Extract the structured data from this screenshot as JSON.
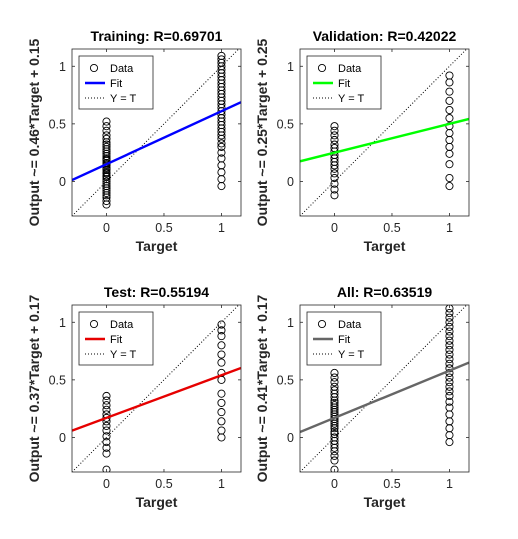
{
  "chart_data": [
    {
      "type": "scatter",
      "title": "Training: R=0.69701",
      "xlabel": "Target",
      "ylabel": "Output ~= 0.46*Target + 0.15",
      "xlim": [
        -0.3,
        1.17
      ],
      "ylim": [
        -0.3,
        1.15
      ],
      "xticks": [
        {
          "v": 0,
          "label": "0"
        },
        {
          "v": 0.5,
          "label": "0.5"
        },
        {
          "v": 1,
          "label": "1"
        }
      ],
      "yticks": [
        {
          "v": 0,
          "label": "0"
        },
        {
          "v": 0.5,
          "label": "0.5"
        },
        {
          "v": 1,
          "label": "1"
        }
      ],
      "legend": {
        "placement": "top-left",
        "entries": [
          "Data",
          "Fit",
          "Y = T"
        ]
      },
      "fit": {
        "slope": 0.46,
        "intercept": 0.15,
        "color": "#0000ff"
      },
      "data": [
        {
          "x": 0,
          "y": [
            -0.2,
            -0.17,
            -0.14,
            -0.12,
            -0.1,
            -0.08,
            -0.06,
            -0.04,
            -0.02,
            0,
            0.02,
            0.04,
            0.05,
            0.07,
            0.08,
            0.1,
            0.11,
            0.12,
            0.14,
            0.15,
            0.16,
            0.18,
            0.19,
            0.2,
            0.22,
            0.24,
            0.26,
            0.28,
            0.3,
            0.32,
            0.34,
            0.37,
            0.4,
            0.44,
            0.48,
            0.52
          ]
        },
        {
          "x": 1,
          "y": [
            -0.04,
            0.02,
            0.08,
            0.14,
            0.2,
            0.25,
            0.3,
            0.33,
            0.37,
            0.4,
            0.43,
            0.46,
            0.49,
            0.52,
            0.55,
            0.58,
            0.61,
            0.64,
            0.67,
            0.7,
            0.73,
            0.76,
            0.79,
            0.82,
            0.85,
            0.88,
            0.91,
            0.94,
            0.97,
            1.0,
            1.03,
            1.06,
            1.09
          ]
        }
      ]
    },
    {
      "type": "scatter",
      "title": "Validation: R=0.42022",
      "xlabel": "Target",
      "ylabel": "Output ~= 0.25*Target + 0.25",
      "xlim": [
        -0.3,
        1.17
      ],
      "ylim": [
        -0.3,
        1.15
      ],
      "xticks": [
        {
          "v": 0,
          "label": "0"
        },
        {
          "v": 0.5,
          "label": "0.5"
        },
        {
          "v": 1,
          "label": "1"
        }
      ],
      "yticks": [
        {
          "v": 0,
          "label": "0"
        },
        {
          "v": 0.5,
          "label": "0.5"
        },
        {
          "v": 1,
          "label": "1"
        }
      ],
      "legend": {
        "placement": "top-left",
        "entries": [
          "Data",
          "Fit",
          "Y = T"
        ]
      },
      "fit": {
        "slope": 0.25,
        "intercept": 0.25,
        "color": "#00ff00"
      },
      "data": [
        {
          "x": 0,
          "y": [
            -0.12,
            -0.07,
            -0.02,
            0.03,
            0.07,
            0.11,
            0.14,
            0.17,
            0.2,
            0.23,
            0.26,
            0.29,
            0.32,
            0.36,
            0.4,
            0.44,
            0.48
          ]
        },
        {
          "x": 1,
          "y": [
            -0.04,
            0.03,
            0.15,
            0.24,
            0.3,
            0.36,
            0.42,
            0.48,
            0.55,
            0.62,
            0.7,
            0.78,
            0.86,
            0.92
          ]
        }
      ]
    },
    {
      "type": "scatter",
      "title": "Test: R=0.55194",
      "xlabel": "Target",
      "ylabel": "Output ~= 0.37*Target + 0.17",
      "xlim": [
        -0.3,
        1.17
      ],
      "ylim": [
        -0.3,
        1.15
      ],
      "xticks": [
        {
          "v": 0,
          "label": "0"
        },
        {
          "v": 0.5,
          "label": "0.5"
        },
        {
          "v": 1,
          "label": "1"
        }
      ],
      "yticks": [
        {
          "v": 0,
          "label": "0"
        },
        {
          "v": 0.5,
          "label": "0.5"
        },
        {
          "v": 1,
          "label": "1"
        }
      ],
      "legend": {
        "placement": "top-left",
        "entries": [
          "Data",
          "Fit",
          "Y = T"
        ]
      },
      "fit": {
        "slope": 0.37,
        "intercept": 0.17,
        "color": "#e60000"
      },
      "data": [
        {
          "x": 0,
          "y": [
            -0.28,
            -0.14,
            -0.09,
            -0.04,
            0.01,
            0.06,
            0.1,
            0.14,
            0.17,
            0.2,
            0.24,
            0.28,
            0.32,
            0.36
          ]
        },
        {
          "x": 1,
          "y": [
            0.0,
            0.06,
            0.14,
            0.22,
            0.3,
            0.38,
            0.5,
            0.56,
            0.65,
            0.72,
            0.8,
            0.88,
            0.93,
            0.98
          ]
        }
      ]
    },
    {
      "type": "scatter",
      "title": "All: R=0.63519",
      "xlabel": "Target",
      "ylabel": "Output ~= 0.41*Target + 0.17",
      "xlim": [
        -0.3,
        1.17
      ],
      "ylim": [
        -0.3,
        1.15
      ],
      "xticks": [
        {
          "v": 0,
          "label": "0"
        },
        {
          "v": 0.5,
          "label": "0.5"
        },
        {
          "v": 1,
          "label": "1"
        }
      ],
      "yticks": [
        {
          "v": 0,
          "label": "0"
        },
        {
          "v": 0.5,
          "label": "0.5"
        },
        {
          "v": 1,
          "label": "1"
        }
      ],
      "legend": {
        "placement": "top-left",
        "entries": [
          "Data",
          "Fit",
          "Y = T"
        ]
      },
      "fit": {
        "slope": 0.41,
        "intercept": 0.17,
        "color": "#666666"
      },
      "data": [
        {
          "x": 0,
          "y": [
            -0.28,
            -0.2,
            -0.16,
            -0.12,
            -0.09,
            -0.06,
            -0.03,
            0,
            0.03,
            0.05,
            0.08,
            0.1,
            0.12,
            0.14,
            0.16,
            0.18,
            0.2,
            0.22,
            0.24,
            0.26,
            0.28,
            0.3,
            0.32,
            0.35,
            0.38,
            0.41,
            0.44,
            0.48,
            0.52,
            0.56
          ]
        },
        {
          "x": 1,
          "y": [
            -0.04,
            0.02,
            0.08,
            0.14,
            0.2,
            0.26,
            0.31,
            0.36,
            0.4,
            0.44,
            0.48,
            0.52,
            0.56,
            0.6,
            0.64,
            0.68,
            0.72,
            0.76,
            0.8,
            0.84,
            0.88,
            0.92,
            0.96,
            1.0,
            1.04,
            1.08,
            1.12
          ]
        }
      ]
    }
  ]
}
